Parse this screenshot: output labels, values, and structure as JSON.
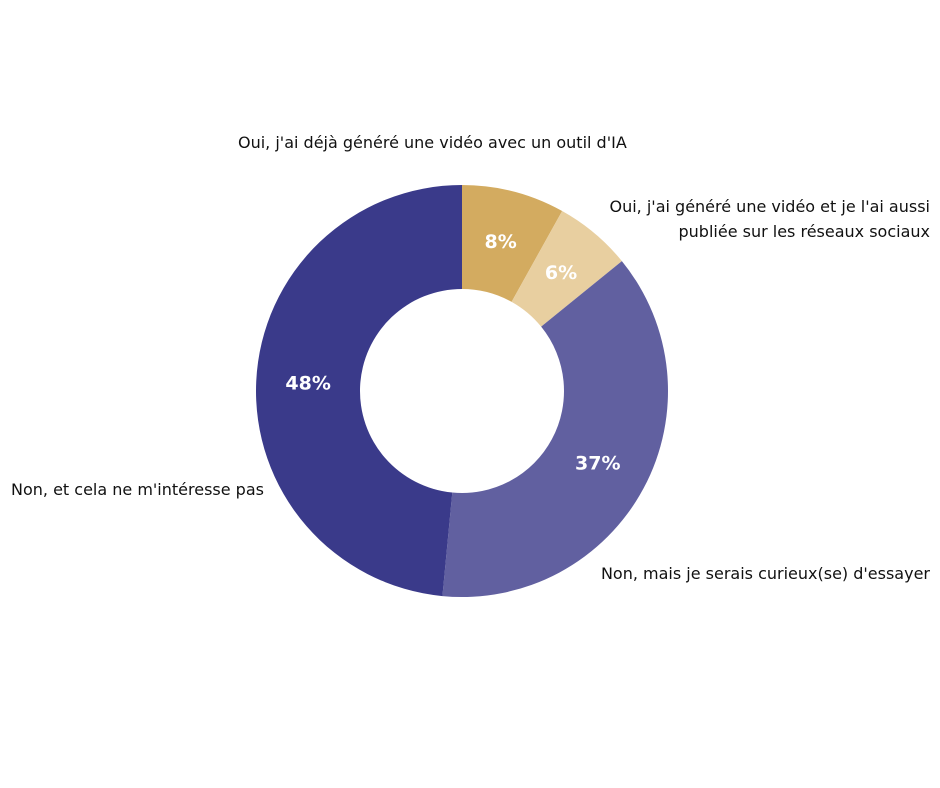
{
  "chart_data": {
    "type": "pie",
    "donut": true,
    "title": "",
    "slices": [
      {
        "label": "Oui, j'ai déjà généré une vidéo avec un outil d'IA",
        "value": 8,
        "value_label": "8%",
        "color": "#d3ab60"
      },
      {
        "label": "Oui, j'ai généré une vidéo et je l'ai aussi publiée sur les réseaux sociaux",
        "value": 6,
        "value_label": "6%",
        "color": "#e8cfa0"
      },
      {
        "label": "Non, mais je serais curieux(se) d'essayer",
        "value": 37,
        "value_label": "37%",
        "color": "#6160a0"
      },
      {
        "label": "Non, et cela ne m'intéresse pas",
        "value": 48,
        "value_label": "48%",
        "color": "#3a3a8a"
      }
    ],
    "legend": "outside labels",
    "grid": false
  }
}
